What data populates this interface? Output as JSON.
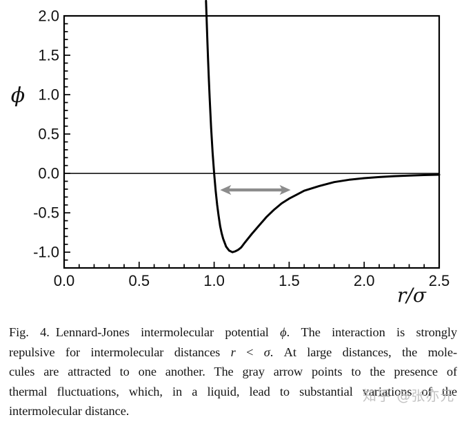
{
  "figure": {
    "watermark": "知乎 @张亦元",
    "caption": {
      "lines": [
        {
          "justify": true,
          "segments": [
            {
              "t": "Fig. 4. Lennard-Jones intermolecular potential "
            },
            {
              "t": "ϕ",
              "i": true
            },
            {
              "t": ". The interaction is strongly"
            }
          ]
        },
        {
          "justify": true,
          "segments": [
            {
              "t": "repulsive for intermolecular distances "
            },
            {
              "t": "r",
              "i": true
            },
            {
              "t": " < "
            },
            {
              "t": "σ",
              "i": true
            },
            {
              "t": ". At large distances, the mole-"
            }
          ]
        },
        {
          "justify": true,
          "segments": [
            {
              "t": "cules are attracted to one another. The gray arrow points to the presence of"
            }
          ]
        },
        {
          "justify": true,
          "segments": [
            {
              "t": "thermal fluctuations, which, in a liquid, lead to substantial variations of the"
            }
          ]
        },
        {
          "justify": false,
          "segments": [
            {
              "t": "intermolecular distance."
            }
          ]
        }
      ]
    }
  },
  "chart_data": {
    "type": "line",
    "title": "",
    "xlabel": "r/σ",
    "ylabel": "ϕ",
    "xlim": [
      0.0,
      2.5
    ],
    "ylim": [
      -1.2,
      2.0
    ],
    "x_ticks": [
      0.0,
      0.5,
      1.0,
      1.5,
      2.0,
      2.5
    ],
    "x_tick_labels": [
      "0.0",
      "0.5",
      "1.0",
      "1.5",
      "2.0",
      "2.5"
    ],
    "y_ticks": [
      -1.0,
      -0.5,
      0.0,
      0.5,
      1.0,
      1.5,
      2.0
    ],
    "y_tick_labels": [
      "-1.0",
      "-0.5",
      "0.0",
      "0.5",
      "1.0",
      "1.5",
      "2.0"
    ],
    "minor_tick_step": 0.1,
    "grid": false,
    "zero_line": true,
    "frame_color": "#000000",
    "curve_color": "#000000",
    "arrow": {
      "x1": 1.04,
      "x2": 1.51,
      "y": -0.21,
      "color": "#8c8c8c",
      "style": "double-headed"
    },
    "series": [
      {
        "name": "Lennard-Jones potential",
        "points": [
          [
            0.946,
            2.19
          ],
          [
            0.95,
            1.96
          ],
          [
            0.955,
            1.68
          ],
          [
            0.96,
            1.42
          ],
          [
            0.965,
            1.18
          ],
          [
            0.97,
            0.96
          ],
          [
            0.975,
            0.76
          ],
          [
            0.98,
            0.58
          ],
          [
            0.985,
            0.42
          ],
          [
            0.99,
            0.26
          ],
          [
            0.995,
            0.13
          ],
          [
            1.0,
            0.0
          ],
          [
            1.01,
            -0.22
          ],
          [
            1.02,
            -0.4
          ],
          [
            1.03,
            -0.54
          ],
          [
            1.04,
            -0.67
          ],
          [
            1.05,
            -0.76
          ],
          [
            1.06,
            -0.83
          ],
          [
            1.08,
            -0.93
          ],
          [
            1.1,
            -0.98
          ],
          [
            1.122,
            -1.0
          ],
          [
            1.14,
            -0.99
          ],
          [
            1.16,
            -0.97
          ],
          [
            1.18,
            -0.94
          ],
          [
            1.2,
            -0.89
          ],
          [
            1.25,
            -0.77
          ],
          [
            1.3,
            -0.66
          ],
          [
            1.35,
            -0.55
          ],
          [
            1.4,
            -0.46
          ],
          [
            1.45,
            -0.38
          ],
          [
            1.5,
            -0.32
          ],
          [
            1.55,
            -0.27
          ],
          [
            1.6,
            -0.22
          ],
          [
            1.7,
            -0.16
          ],
          [
            1.8,
            -0.11
          ],
          [
            1.9,
            -0.08
          ],
          [
            2.0,
            -0.06
          ],
          [
            2.1,
            -0.046
          ],
          [
            2.2,
            -0.035
          ],
          [
            2.3,
            -0.027
          ],
          [
            2.4,
            -0.021
          ],
          [
            2.5,
            -0.016
          ]
        ]
      }
    ]
  }
}
